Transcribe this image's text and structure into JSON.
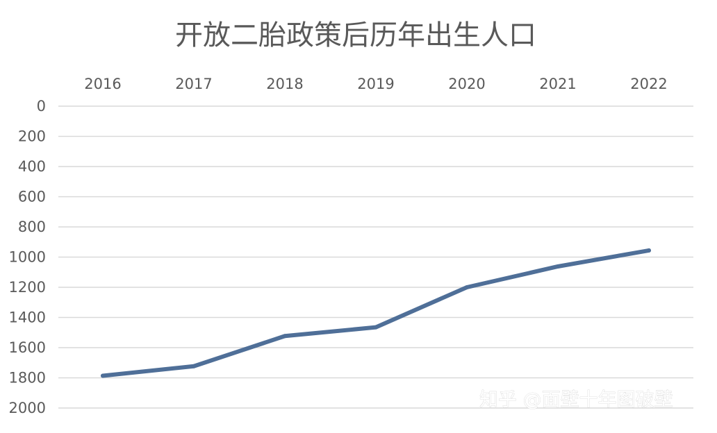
{
  "watermark": "知乎 @面壁十年图破壁",
  "chart_data": {
    "type": "line",
    "title": "开放二胎政策后历年出生人口",
    "categories": [
      "2016",
      "2017",
      "2018",
      "2019",
      "2020",
      "2021",
      "2022"
    ],
    "x_axis_position": "top",
    "y_axis_reversed": true,
    "ylim": [
      0,
      2000
    ],
    "y_ticks": [
      "0",
      "200",
      "400",
      "600",
      "800",
      "1000",
      "1200",
      "1400",
      "1600",
      "1800",
      "2000"
    ],
    "grid": true,
    "legend": "none",
    "series": [
      {
        "values": [
          1786,
          1723,
          1523,
          1465,
          1200,
          1062,
          956
        ],
        "color": "#4f6f98"
      }
    ]
  }
}
